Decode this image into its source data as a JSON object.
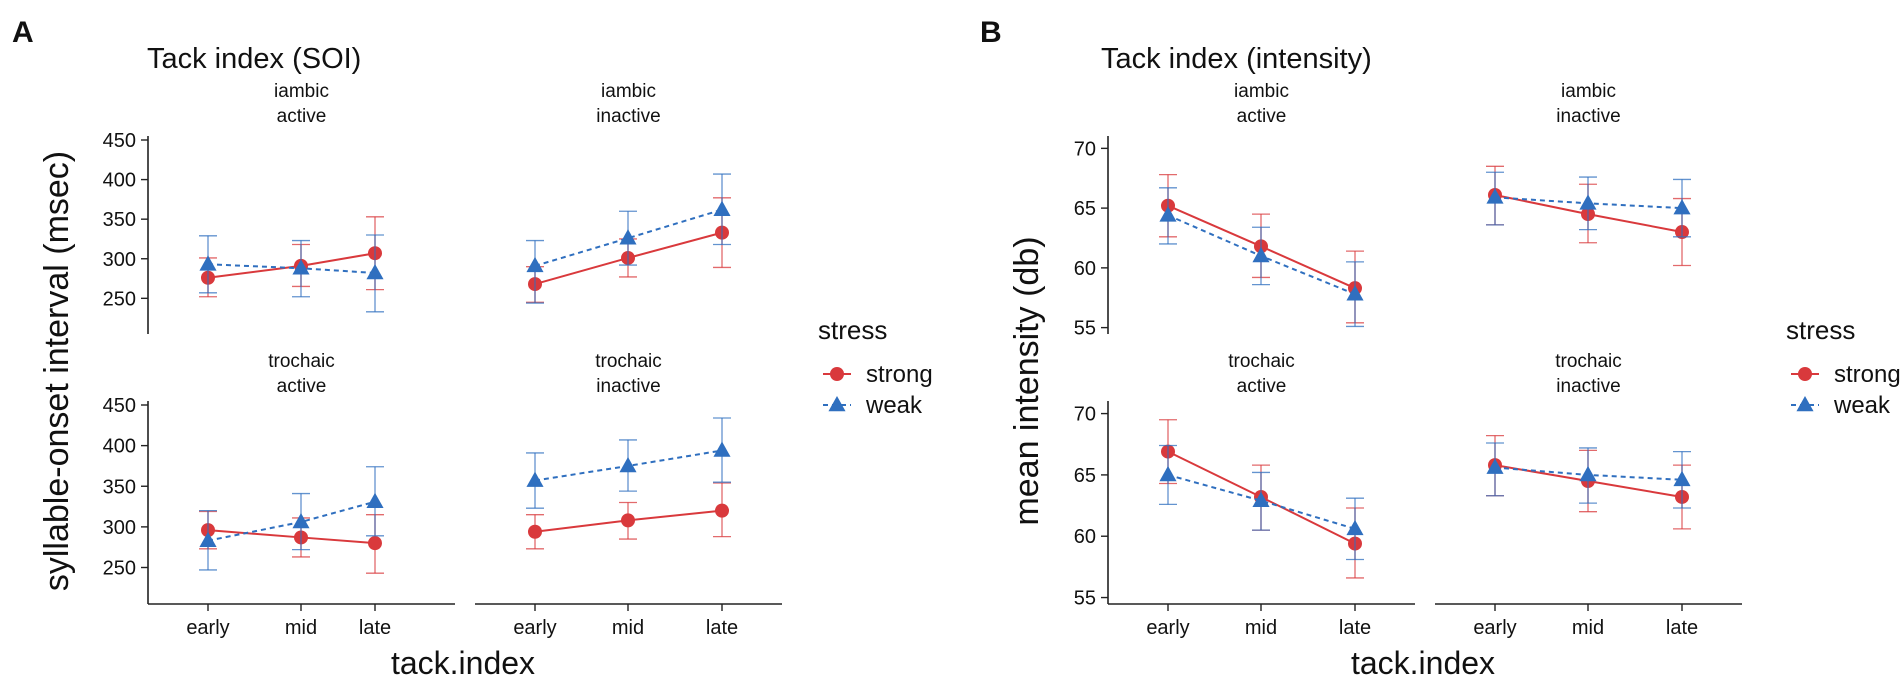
{
  "panel_labels": [
    "A",
    "B"
  ],
  "legend_title": "stress",
  "colors": {
    "strong": "#D9393C",
    "weak": "#2F6FBF"
  },
  "chart_data": [
    {
      "type": "line",
      "title": "Tack index (SOI)",
      "xlabel": "tack.index",
      "ylabel": "syllable-onset interval (msec)",
      "categories": [
        "early",
        "mid",
        "late"
      ],
      "ylim": [
        210,
        450
      ],
      "yticks": [
        250,
        300,
        350,
        400,
        450
      ],
      "legend": {
        "title": "stress",
        "entries": [
          "strong",
          "weak"
        ],
        "position": "right"
      },
      "facets": [
        {
          "strip": [
            "iambic",
            "active"
          ],
          "series": [
            {
              "name": "strong",
              "values": [
                276,
                291,
                307
              ],
              "lower": [
                252,
                265,
                261
              ],
              "upper": [
                301,
                318,
                353
              ]
            },
            {
              "name": "weak",
              "values": [
                293,
                288,
                282
              ],
              "lower": [
                257,
                252,
                233
              ],
              "upper": [
                329,
                323,
                330
              ]
            }
          ]
        },
        {
          "strip": [
            "iambic",
            "inactive"
          ],
          "series": [
            {
              "name": "strong",
              "values": [
                268,
                301,
                333
              ],
              "lower": [
                245,
                277,
                289
              ],
              "upper": [
                290,
                325,
                377
              ]
            },
            {
              "name": "weak",
              "values": [
                291,
                326,
                362
              ],
              "lower": [
                244,
                292,
                318
              ],
              "upper": [
                323,
                360,
                407
              ]
            }
          ]
        },
        {
          "strip": [
            "trochaic",
            "active"
          ],
          "series": [
            {
              "name": "strong",
              "values": [
                296,
                287,
                280
              ],
              "lower": [
                273,
                263,
                243
              ],
              "upper": [
                319,
                311,
                315
              ]
            },
            {
              "name": "weak",
              "values": [
                283,
                306,
                331
              ],
              "lower": [
                247,
                272,
                289
              ],
              "upper": [
                320,
                341,
                374
              ]
            }
          ]
        },
        {
          "strip": [
            "trochaic",
            "inactive"
          ],
          "series": [
            {
              "name": "strong",
              "values": [
                294,
                308,
                320
              ],
              "lower": [
                273,
                285,
                288
              ],
              "upper": [
                315,
                330,
                354
              ]
            },
            {
              "name": "weak",
              "values": [
                357,
                375,
                394
              ],
              "lower": [
                323,
                344,
                355
              ],
              "upper": [
                391,
                407,
                434
              ]
            }
          ]
        }
      ]
    },
    {
      "type": "line",
      "title": "Tack index (intensity)",
      "xlabel": "tack.index",
      "ylabel": "mean intensity (db)",
      "categories": [
        "early",
        "mid",
        "late"
      ],
      "ylim": [
        54.8,
        70.7
      ],
      "yticks": [
        55,
        60,
        65,
        70
      ],
      "legend": {
        "title": "stress",
        "entries": [
          "strong",
          "weak"
        ],
        "position": "right"
      },
      "facets": [
        {
          "strip": [
            "iambic",
            "active"
          ],
          "series": [
            {
              "name": "strong",
              "values": [
                65.2,
                61.8,
                58.3
              ],
              "lower": [
                62.6,
                59.2,
                55.4
              ],
              "upper": [
                67.8,
                64.5,
                61.4
              ]
            },
            {
              "name": "weak",
              "values": [
                64.4,
                61.0,
                57.8
              ],
              "lower": [
                62.0,
                58.6,
                55.1
              ],
              "upper": [
                66.7,
                63.4,
                60.5
              ]
            }
          ]
        },
        {
          "strip": [
            "iambic",
            "inactive"
          ],
          "series": [
            {
              "name": "strong",
              "values": [
                66.1,
                64.5,
                63.0
              ],
              "lower": [
                63.6,
                62.1,
                60.2
              ],
              "upper": [
                68.5,
                67.0,
                65.8
              ]
            },
            {
              "name": "weak",
              "values": [
                65.9,
                65.4,
                65.0
              ],
              "lower": [
                63.6,
                63.2,
                62.6
              ],
              "upper": [
                68.0,
                67.6,
                67.4
              ]
            }
          ]
        },
        {
          "strip": [
            "trochaic",
            "active"
          ],
          "series": [
            {
              "name": "strong",
              "values": [
                66.9,
                63.2,
                59.4
              ],
              "lower": [
                64.3,
                60.5,
                56.6
              ],
              "upper": [
                69.5,
                65.8,
                62.3
              ]
            },
            {
              "name": "weak",
              "values": [
                65.0,
                62.9,
                60.6
              ],
              "lower": [
                62.6,
                60.5,
                58.1
              ],
              "upper": [
                67.4,
                65.2,
                63.1
              ]
            }
          ]
        },
        {
          "strip": [
            "trochaic",
            "inactive"
          ],
          "series": [
            {
              "name": "strong",
              "values": [
                65.8,
                64.5,
                63.2
              ],
              "lower": [
                63.3,
                62.0,
                60.6
              ],
              "upper": [
                68.2,
                67.0,
                65.8
              ]
            },
            {
              "name": "weak",
              "values": [
                65.6,
                65.0,
                64.6
              ],
              "lower": [
                63.3,
                62.7,
                62.3
              ],
              "upper": [
                67.6,
                67.2,
                66.9
              ]
            }
          ]
        }
      ]
    }
  ]
}
